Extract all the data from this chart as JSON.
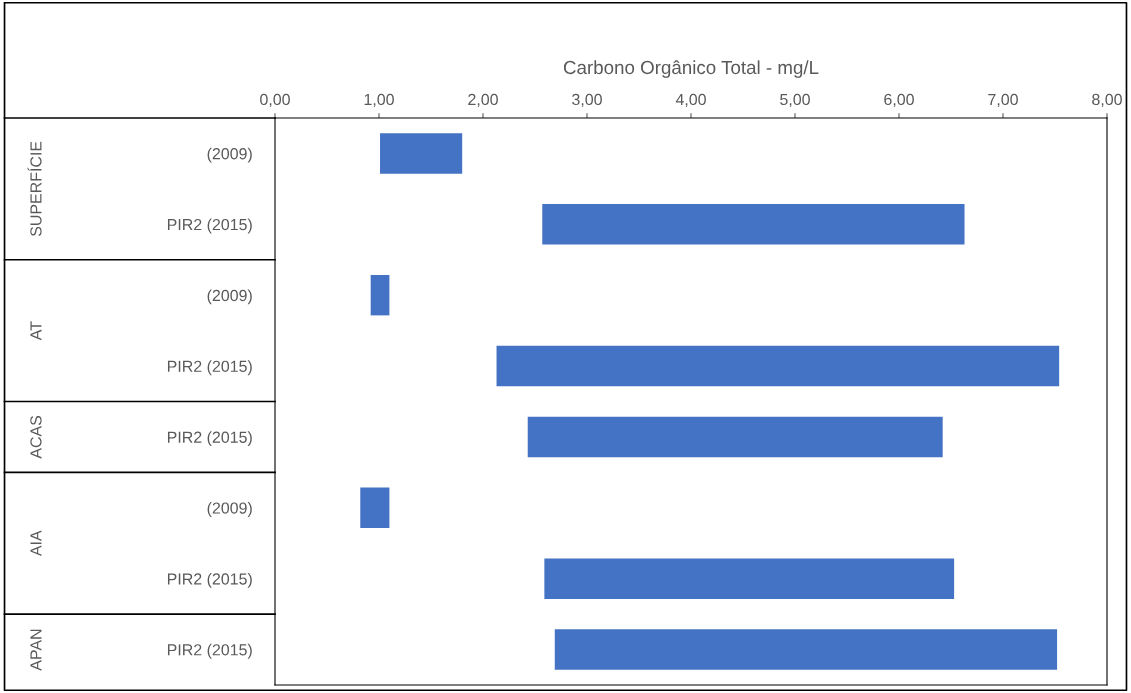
{
  "chart_data": {
    "type": "bar",
    "orientation": "horizontal",
    "xlabel": "Carbono Orgânico Total - mg/L",
    "categories": [
      "(2009)",
      "PIR2 (2015)",
      "(2009)",
      "PIR2 (2015)",
      "PIR2 (2015)",
      "(2009)",
      "PIR2 (2015)",
      "PIR2 (2015)"
    ],
    "base": [
      1.01,
      2.57,
      0.92,
      2.13,
      2.43,
      0.82,
      2.59,
      2.69
    ],
    "values": [
      0.79,
      4.06,
      0.18,
      5.41,
      3.99,
      0.28,
      3.94,
      4.83
    ],
    "color": "#4472c4",
    "xlim": [
      0,
      8
    ],
    "xticks": [
      {
        "value": 0,
        "label": "0,00"
      },
      {
        "value": 1,
        "label": "1,00"
      },
      {
        "value": 2,
        "label": "2,00"
      },
      {
        "value": 3,
        "label": "3,00"
      },
      {
        "value": 4,
        "label": "4,00"
      },
      {
        "value": 5,
        "label": "5,00"
      },
      {
        "value": 6,
        "label": "6,00"
      },
      {
        "value": 7,
        "label": "7,00"
      },
      {
        "value": 8,
        "label": "8,00"
      }
    ],
    "annotations": [
      "SUPERFÍCIE",
      "AT",
      "ACAS",
      "AIA",
      "APAN"
    ],
    "grid": false
  }
}
